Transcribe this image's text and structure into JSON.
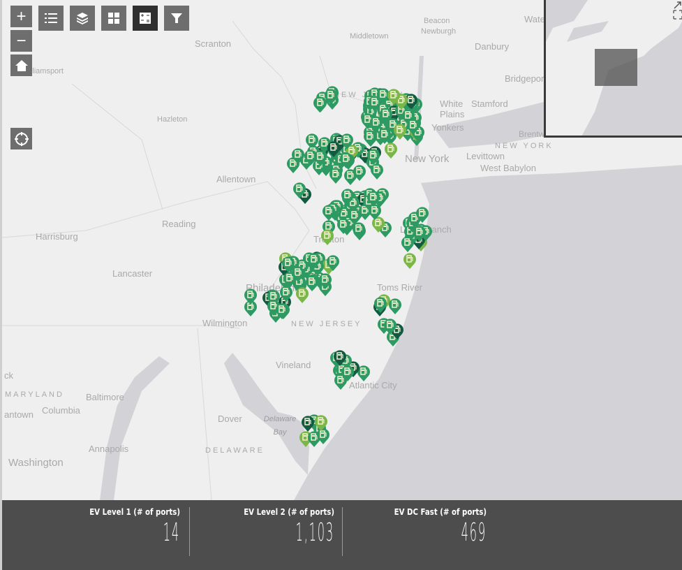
{
  "map": {
    "labels": {
      "scranton": "Scranton",
      "williamsport": "Williamsport",
      "hazleton": "Hazleton",
      "middletown": "Middletown",
      "beacon": "Beacon",
      "newburgh": "Newburgh",
      "danbury": "Danbury",
      "waterbury": "Wate",
      "bridgeport": "Bridgeport",
      "white_plains": "White Plains",
      "stamford": "Stamford",
      "yonkers": "Yonkers",
      "new_york_state": "NEW YORK",
      "new_york": "New York",
      "brentwood": "Brentwood",
      "levittown": "Levittown",
      "west_babylon": "West Babylon",
      "new_jersey_n": "NEW JERSEY",
      "allentown": "Allentown",
      "reading": "Reading",
      "harrisburg": "Harrisburg",
      "lancaster": "Lancaster",
      "trenton": "Trenton",
      "long_branch": "Long Branch",
      "toms_river": "Toms River",
      "philadelphia": "Philadelphia",
      "wilmington": "Wilmington",
      "new_jersey_s": "NEW JERSEY",
      "vineland": "Vineland",
      "atlantic_city": "Atlantic City",
      "maryland": "MARYLAND",
      "baltimore": "Baltimore",
      "columbia": "Columbia",
      "germantown": "antown",
      "york": "ck",
      "dover": "Dover",
      "delaware_bay": "Delaware Bay",
      "delaware": "DELAWARE",
      "annapolis": "Annapolis",
      "washington": "Washington"
    },
    "controls": {
      "zoom_in": "+",
      "zoom_out": "−",
      "home": "home-icon",
      "locate": "locate-icon"
    },
    "toolbar": [
      "legend-icon",
      "layers-icon",
      "basemap-gallery-icon",
      "measure-icon",
      "filter-icon"
    ],
    "active_tool": "measure-icon",
    "pin_colors": {
      "level1": "#7ab648",
      "level2": "#2e9a63",
      "dcfast": "#135a43"
    }
  },
  "overview": {
    "expand_icon": "expand-icon",
    "arrow_icon": "arrow-icon"
  },
  "stats": [
    {
      "title": "EV Level 1 (# of ports)",
      "value": "14"
    },
    {
      "title": "EV Level 2 (# of ports)",
      "value": "1,103"
    },
    {
      "title": "EV DC Fast (# of ports)",
      "value": "469"
    }
  ],
  "colors": {
    "land": "#efefef",
    "water": "#d3d3d7",
    "panel": "#4d4d4d"
  }
}
